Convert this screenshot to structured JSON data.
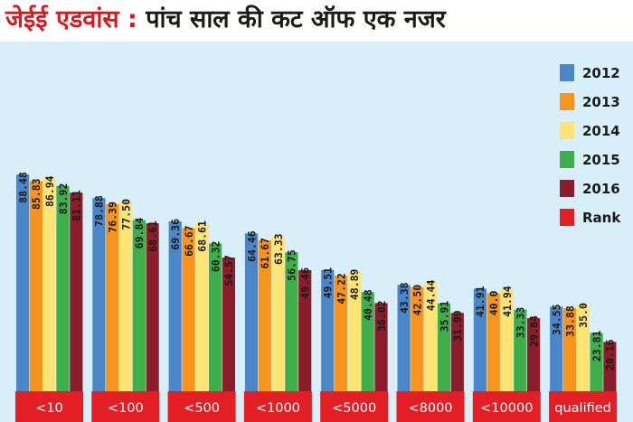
{
  "title": {
    "prefix": "जेईई एडवांस :",
    "main": "पांच साल की कट ऑफ एक नजर"
  },
  "chart_data": {
    "type": "bar",
    "categories": [
      "<10",
      "<100",
      "<500",
      "<1000",
      "<5000",
      "<8000",
      "<10000",
      "qualified"
    ],
    "series": [
      {
        "name": "2012",
        "color": "#4a86c8",
        "values": [
          88.48,
          78.88,
          69.36,
          64.46,
          49.51,
          43.38,
          41.91,
          34.55
        ]
      },
      {
        "name": "2013",
        "color": "#f7941d",
        "values": [
          85.83,
          76.39,
          66.67,
          61.67,
          47.22,
          42.5,
          40.0,
          33.88
        ]
      },
      {
        "name": "2014",
        "color": "#fde475",
        "values": [
          86.94,
          77.5,
          68.61,
          63.33,
          48.89,
          44.44,
          41.94,
          35.0
        ]
      },
      {
        "name": "2015",
        "color": "#3dae49",
        "values": [
          83.92,
          69.84,
          60.32,
          56.75,
          40.48,
          35.91,
          33.33,
          23.81
        ]
      },
      {
        "name": "2016",
        "color": "#8b1d2c",
        "values": [
          81.11,
          68.61,
          54.57,
          49.46,
          36.02,
          31.99,
          29.84,
          20.16
        ]
      }
    ],
    "value_labels": [
      [
        "88.48",
        "78.88",
        "69.36",
        "64.46",
        "49.51",
        "43.38",
        "41.91",
        "34.55"
      ],
      [
        "85.83",
        "76.39",
        "66.67",
        "61.67",
        "47.22",
        "42.50",
        "40.0",
        "33.88"
      ],
      [
        "86.94",
        "77.50",
        "68.61",
        "63.33",
        "48.89",
        "44.44",
        "41.94",
        "35.0"
      ],
      [
        "83.92",
        "69.84",
        "60.32",
        "56.75",
        "40.48",
        "35.91",
        "33.33",
        "23.81"
      ],
      [
        "81.11",
        "68.61",
        "54.57",
        "49.46",
        "36.02",
        "31.99",
        "29.84",
        "20.16"
      ]
    ],
    "legend": {
      "placement": "right",
      "entries": [
        {
          "label": "2012",
          "color": "#4a86c8"
        },
        {
          "label": "2013",
          "color": "#f7941d"
        },
        {
          "label": "2014",
          "color": "#fde475"
        },
        {
          "label": "2015",
          "color": "#3dae49"
        },
        {
          "label": "2016",
          "color": "#8b1d2c"
        },
        {
          "label": "Rank",
          "color": "#e31e24"
        }
      ]
    },
    "category_label_color": "#e31e24",
    "ylim": [
      0,
      100
    ],
    "grid": false,
    "xlabel": "",
    "ylabel": ""
  }
}
